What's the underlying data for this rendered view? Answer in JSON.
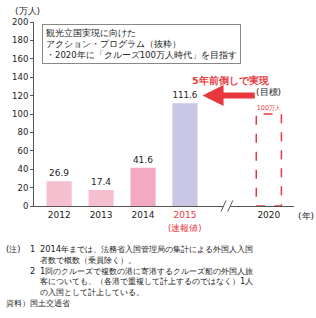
{
  "chart_data": {
    "type": "bar",
    "y_label": "(万人)",
    "x_label": "(年)",
    "categories": [
      "2012",
      "2013",
      "2014",
      "2015",
      null,
      "2020"
    ],
    "series": [
      {
        "values": [
          26.9,
          17.4,
          41.6,
          111.6,
          null,
          null
        ],
        "colors": [
          "#f5bfcf",
          "#f5bfcf",
          "#f2a9c1",
          "#c9c6e6",
          null,
          null
        ]
      },
      {
        "values": [
          null,
          null,
          null,
          null,
          null,
          100
        ],
        "value_labels": [
          null,
          null,
          null,
          null,
          null,
          "100万人"
        ],
        "color": "#e8383d",
        "line_style": "dashed"
      }
    ],
    "ylim": [
      0,
      200
    ],
    "yticks": [
      0,
      20,
      40,
      60,
      80,
      100,
      120,
      140,
      160,
      180,
      200
    ],
    "grid": false,
    "data_labels": true,
    "annotations": [
      {
        "category": "2015",
        "text": "(速報値)",
        "color": "#e8383d"
      },
      {
        "category": "2020",
        "text": "(目標)"
      },
      {
        "text": "5年前倒しで実現",
        "color": "#e8383d"
      }
    ],
    "box": [
      "観光立国実現に向けた",
      "アクション・プログラム（抜粋）",
      "・2020年に「クルーズ100万人時代」を目指す"
    ],
    "notes_label": "(注)",
    "notes": [
      {
        "number": "1",
        "lines": [
          "2014年までは、法務省入国管理局の集計による外国人入国",
          "者数で概数（乗員除く）。"
        ]
      },
      {
        "number": "2",
        "lines": [
          "1回のクルーズで複数の港に寄港するクルーズ船の外国人旅",
          "客についても、（各港で重複して計上するのではなく）1人",
          "の入国として計上している。"
        ]
      }
    ],
    "source": "資料）国土交通省"
  }
}
